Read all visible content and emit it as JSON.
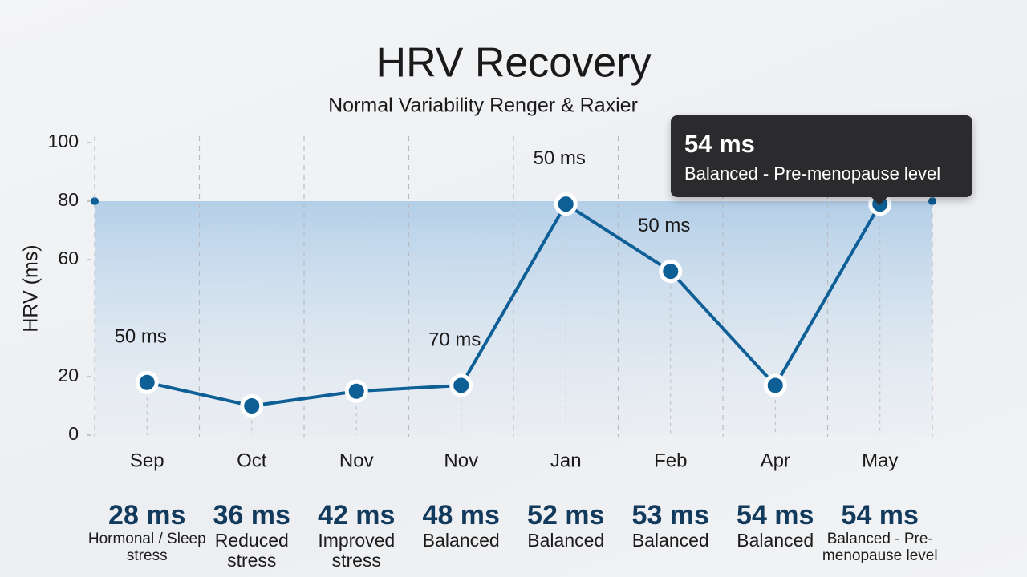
{
  "chart_data": {
    "type": "line",
    "title": "HRV Recovery",
    "subtitle": "Normal Variability Renger & Raxier",
    "y_label": "HRV (ms)",
    "categories": [
      "Sep",
      "Oct",
      "Nov",
      "Nov",
      "Jan",
      "Feb",
      "Apr",
      "May"
    ],
    "series": [
      {
        "name": "HRV",
        "color": "#0f5f97",
        "values": [
          18,
          10,
          15,
          17,
          79,
          56,
          17,
          79
        ]
      }
    ],
    "normal_range": [
      0,
      80
    ],
    "ylim": [
      0,
      100
    ],
    "yticks": [
      0,
      20,
      60,
      80,
      100
    ],
    "annotations": [
      {
        "text": "50 ms",
        "at": 0
      },
      {
        "text": "70 ms",
        "at": 3
      },
      {
        "text": "50 ms",
        "at": 4
      },
      {
        "text": "50 ms",
        "at": 5
      }
    ],
    "tooltip": {
      "title": "54 ms",
      "text": "Balanced - Pre-menopause level"
    },
    "summary": [
      {
        "value": "28 ms",
        "note": "Hormonal / Sleep stress"
      },
      {
        "value": "36 ms",
        "note": "Reduced stress"
      },
      {
        "value": "42 ms",
        "note": "Improved stress"
      },
      {
        "value": "48 ms",
        "note": "Balanced"
      },
      {
        "value": "52 ms",
        "note": "Balanced"
      },
      {
        "value": "53 ms",
        "note": "Balanced"
      },
      {
        "value": "54 ms",
        "note": "Balanced"
      },
      {
        "value": "54 ms",
        "note": "Balanced - Pre-menopause level"
      }
    ]
  }
}
